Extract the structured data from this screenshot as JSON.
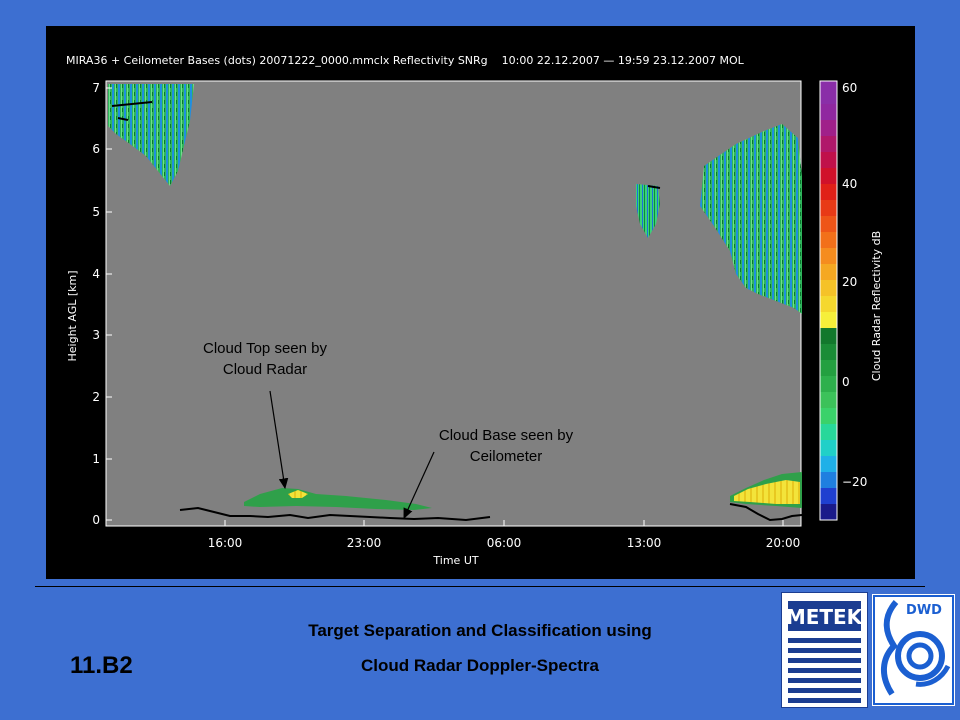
{
  "plot": {
    "title": "MIRA36 + Ceilometer Bases (dots) 20071222_0000.mmclx Reflectivity SNRg    10:00 22.12.2007 — 19:59 23.12.2007 MOL",
    "ylabel": "Height AGL [km]",
    "xlabel": "Time UT",
    "colorbar_label": "Cloud Radar Reflectivity dB"
  },
  "annotations": {
    "cloud_top": [
      "Cloud Top seen by",
      "Cloud Radar"
    ],
    "cloud_base": [
      "Cloud Base seen by",
      "Ceilometer"
    ]
  },
  "footer": {
    "slide_number": "11.B2",
    "line1": "Target Separation and Classification using",
    "line2": "Cloud Radar Doppler-Spectra"
  },
  "logos": {
    "metek": "METEK",
    "dwd": "DWD"
  },
  "colors": {
    "slide_bg": "#3d6fd1",
    "plot_bg": "#808080",
    "panel_bg": "#000000"
  },
  "chart_data": {
    "type": "heatmap",
    "title": "MIRA36 + Ceilometer Bases (dots) 20071222_0000.mmclx Reflectivity SNRg    10:00 22.12.2007 — 19:59 23.12.2007 MOL",
    "xlabel": "Time UT",
    "ylabel": "Height AGL [km]",
    "x_ticks": [
      "16:00",
      "23:00",
      "06:00",
      "13:00",
      "20:00"
    ],
    "y_ticks": [
      "0",
      "1",
      "2",
      "3",
      "4",
      "5",
      "6",
      "7"
    ],
    "ylim": [
      0,
      7
    ],
    "colorbar": {
      "label": "Cloud Radar Reflectivity dB",
      "ticks": [
        "60",
        "40",
        "20",
        "0",
        "−20"
      ]
    },
    "legend": "right (colorbar)",
    "grid": false
  }
}
